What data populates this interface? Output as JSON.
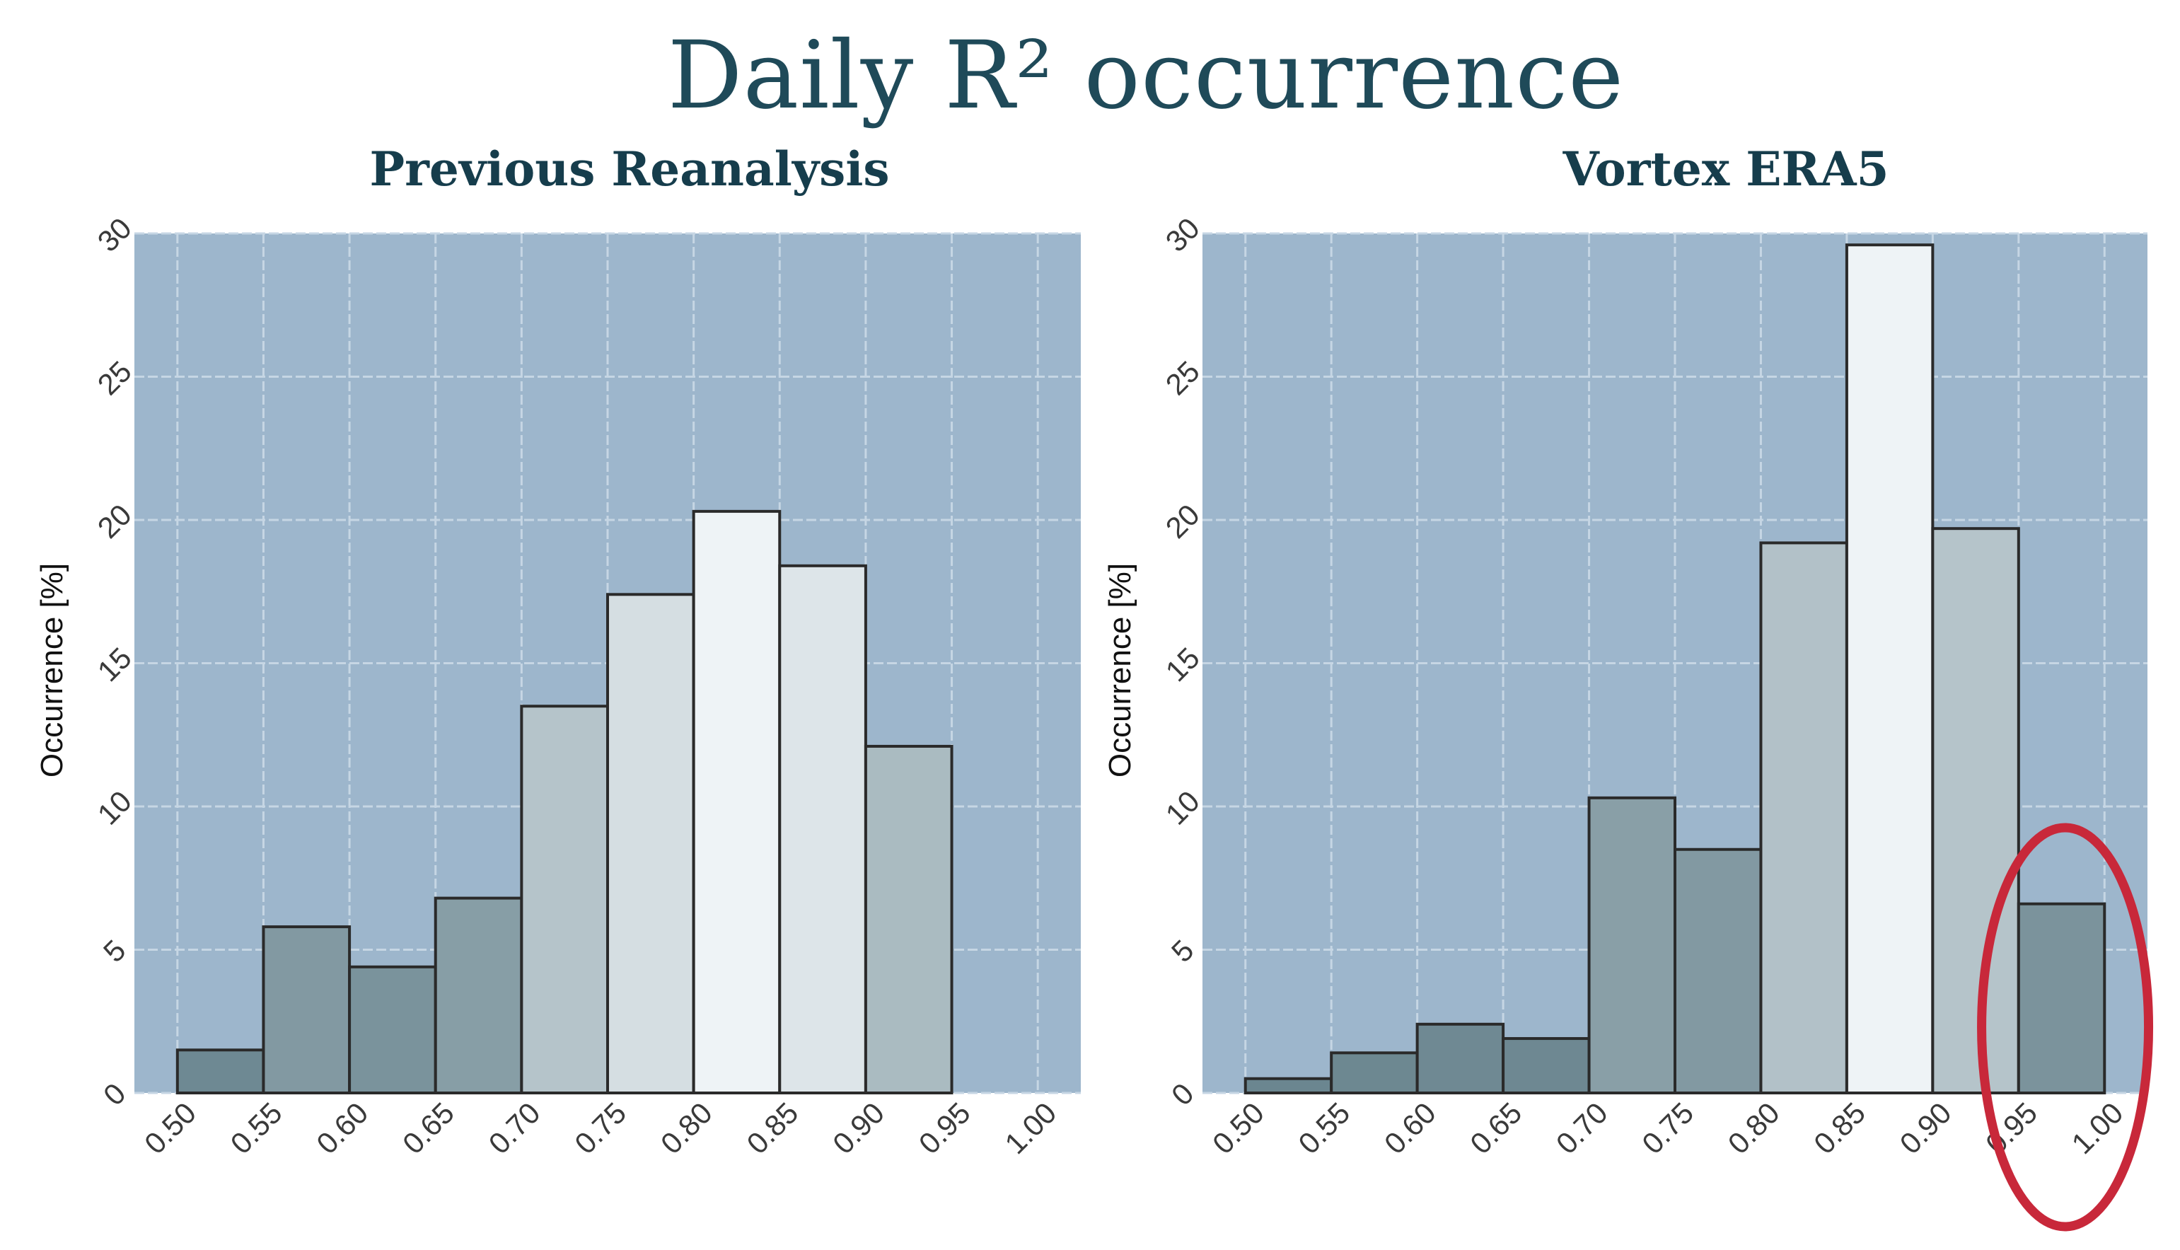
{
  "title": "Daily R² occurrence",
  "chart_data": [
    {
      "type": "bar",
      "title": "Previous Reanalysis",
      "xlabel": "",
      "ylabel": "Occurrence [%]",
      "bin_edges": [
        0.5,
        0.55,
        0.6,
        0.65,
        0.7,
        0.75,
        0.8,
        0.85,
        0.9,
        0.95,
        1.0
      ],
      "x_tick_labels": [
        "0.50",
        "0.55",
        "0.60",
        "0.65",
        "0.70",
        "0.75",
        "0.80",
        "0.85",
        "0.90",
        "0.95",
        "1.00"
      ],
      "values": [
        1.5,
        5.8,
        4.4,
        6.8,
        13.5,
        17.4,
        20.3,
        18.4,
        12.1,
        0
      ],
      "ylim": [
        0,
        30
      ],
      "y_ticks": [
        0,
        5,
        10,
        15,
        20,
        25,
        30
      ],
      "y_tick_labels": [
        "0",
        "5",
        "10",
        "15",
        "20",
        "25",
        "30"
      ],
      "grid": true,
      "background": "#9db6cc"
    },
    {
      "type": "bar",
      "title": "Vortex ERA5",
      "xlabel": "",
      "ylabel": "Occurrence [%]",
      "bin_edges": [
        0.5,
        0.55,
        0.6,
        0.65,
        0.7,
        0.75,
        0.8,
        0.85,
        0.9,
        0.95,
        1.0
      ],
      "x_tick_labels": [
        "0.50",
        "0.55",
        "0.60",
        "0.65",
        "0.70",
        "0.75",
        "0.80",
        "0.85",
        "0.90",
        "0.95",
        "1.00"
      ],
      "values": [
        0.5,
        1.4,
        2.4,
        1.9,
        10.3,
        8.5,
        19.2,
        29.6,
        19.7,
        6.6
      ],
      "ylim": [
        0,
        30
      ],
      "y_ticks": [
        0,
        5,
        10,
        15,
        20,
        25,
        30
      ],
      "y_tick_labels": [
        "0",
        "5",
        "10",
        "15",
        "20",
        "25",
        "30"
      ],
      "grid": true,
      "background": "#9db6cc",
      "highlight": {
        "bin": "0.95–1.00",
        "shape": "ellipse",
        "color": "#c8283a"
      }
    }
  ],
  "colors": {
    "title": "#1f4a59",
    "panel_title": "#163d4c",
    "bar_low": "#6b8690",
    "bar_high": "#eef3f6",
    "bar_stroke": "#2a2a2a",
    "grid": "#c6d6e4"
  }
}
